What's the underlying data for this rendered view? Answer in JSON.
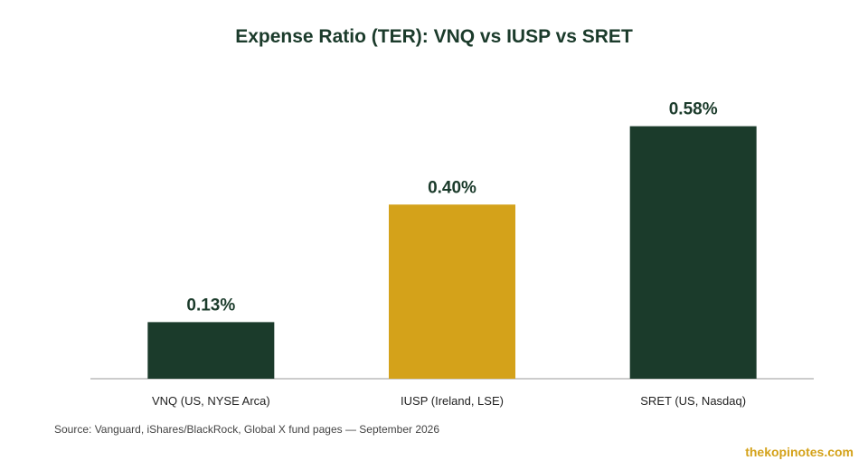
{
  "chart_data": {
    "type": "bar",
    "title": "Expense Ratio (TER): VNQ vs IUSP vs SRET",
    "categories": [
      "VNQ (US, NYSE Arca)",
      "IUSP (Ireland, LSE)",
      "SRET (US, Nasdaq)"
    ],
    "values": [
      0.13,
      0.4,
      0.58
    ],
    "value_labels": [
      "0.13%",
      "0.40%",
      "0.58%"
    ],
    "bar_colors": [
      "#1b3b2b",
      "#d4a21a",
      "#1b3b2b"
    ],
    "ylim": [
      0,
      0.6
    ],
    "grid": false,
    "legend": "none"
  },
  "source": "Source: Vanguard, iShares/BlackRock, Global X fund pages — September 2026",
  "brand": "thekopinotes.com",
  "colors": {
    "title": "#1b3b2b",
    "label": "#1b3b2b",
    "axis": "#bbbbbb",
    "brand": "#d4a21a"
  }
}
